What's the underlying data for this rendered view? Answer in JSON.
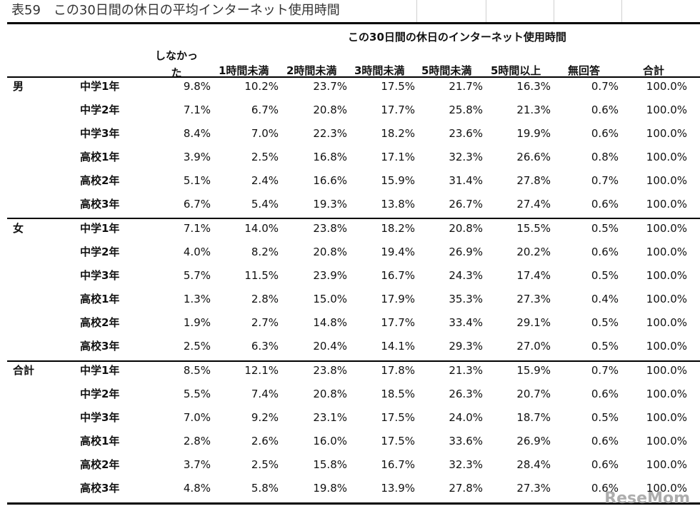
{
  "title": "表59　この30日間の休日の平均インターネット使用時間",
  "table": {
    "group_header": "この30日間の休日のインターネット使用時間",
    "columns": [
      "しなかった",
      "1時間未満",
      "2時間未満",
      "3時間未満",
      "5時間未満",
      "5時間以上",
      "無回答",
      "合計"
    ],
    "groups": [
      {
        "label": "男",
        "rows": [
          {
            "grade": "中学1年",
            "cells": [
              "9.8%",
              "10.2%",
              "23.7%",
              "17.5%",
              "21.7%",
              "16.3%",
              "0.7%",
              "100.0%"
            ]
          },
          {
            "grade": "中学2年",
            "cells": [
              "7.1%",
              "6.7%",
              "20.8%",
              "17.7%",
              "25.8%",
              "21.3%",
              "0.6%",
              "100.0%"
            ]
          },
          {
            "grade": "中学3年",
            "cells": [
              "8.4%",
              "7.0%",
              "22.3%",
              "18.2%",
              "23.6%",
              "19.9%",
              "0.6%",
              "100.0%"
            ]
          },
          {
            "grade": "高校1年",
            "cells": [
              "3.9%",
              "2.5%",
              "16.8%",
              "17.1%",
              "32.3%",
              "26.6%",
              "0.8%",
              "100.0%"
            ]
          },
          {
            "grade": "高校2年",
            "cells": [
              "5.1%",
              "2.4%",
              "16.6%",
              "15.9%",
              "31.4%",
              "27.8%",
              "0.7%",
              "100.0%"
            ]
          },
          {
            "grade": "高校3年",
            "cells": [
              "6.7%",
              "5.4%",
              "19.3%",
              "13.8%",
              "26.7%",
              "27.4%",
              "0.6%",
              "100.0%"
            ]
          }
        ]
      },
      {
        "label": "女",
        "rows": [
          {
            "grade": "中学1年",
            "cells": [
              "7.1%",
              "14.0%",
              "23.8%",
              "18.2%",
              "20.8%",
              "15.5%",
              "0.5%",
              "100.0%"
            ]
          },
          {
            "grade": "中学2年",
            "cells": [
              "4.0%",
              "8.2%",
              "20.8%",
              "19.4%",
              "26.9%",
              "20.2%",
              "0.6%",
              "100.0%"
            ]
          },
          {
            "grade": "中学3年",
            "cells": [
              "5.7%",
              "11.5%",
              "23.9%",
              "16.7%",
              "24.3%",
              "17.4%",
              "0.5%",
              "100.0%"
            ]
          },
          {
            "grade": "高校1年",
            "cells": [
              "1.3%",
              "2.8%",
              "15.0%",
              "17.9%",
              "35.3%",
              "27.3%",
              "0.4%",
              "100.0%"
            ]
          },
          {
            "grade": "高校2年",
            "cells": [
              "1.9%",
              "2.7%",
              "14.8%",
              "17.7%",
              "33.4%",
              "29.1%",
              "0.5%",
              "100.0%"
            ]
          },
          {
            "grade": "高校3年",
            "cells": [
              "2.5%",
              "6.3%",
              "20.4%",
              "14.1%",
              "29.3%",
              "27.0%",
              "0.5%",
              "100.0%"
            ]
          }
        ]
      },
      {
        "label": "合計",
        "rows": [
          {
            "grade": "中学1年",
            "cells": [
              "8.5%",
              "12.1%",
              "23.8%",
              "17.8%",
              "21.3%",
              "15.9%",
              "0.7%",
              "100.0%"
            ]
          },
          {
            "grade": "中学2年",
            "cells": [
              "5.5%",
              "7.4%",
              "20.8%",
              "18.5%",
              "26.3%",
              "20.7%",
              "0.6%",
              "100.0%"
            ]
          },
          {
            "grade": "中学3年",
            "cells": [
              "7.0%",
              "9.2%",
              "23.1%",
              "17.5%",
              "24.0%",
              "18.7%",
              "0.5%",
              "100.0%"
            ]
          },
          {
            "grade": "高校1年",
            "cells": [
              "2.8%",
              "2.6%",
              "16.0%",
              "17.5%",
              "33.6%",
              "26.9%",
              "0.6%",
              "100.0%"
            ]
          },
          {
            "grade": "高校2年",
            "cells": [
              "3.7%",
              "2.5%",
              "15.8%",
              "16.7%",
              "32.3%",
              "28.4%",
              "0.6%",
              "100.0%"
            ]
          },
          {
            "grade": "高校3年",
            "cells": [
              "4.8%",
              "5.8%",
              "19.8%",
              "13.9%",
              "27.8%",
              "27.3%",
              "0.6%",
              "100.0%"
            ]
          }
        ]
      }
    ]
  },
  "watermark": "ReseMom"
}
